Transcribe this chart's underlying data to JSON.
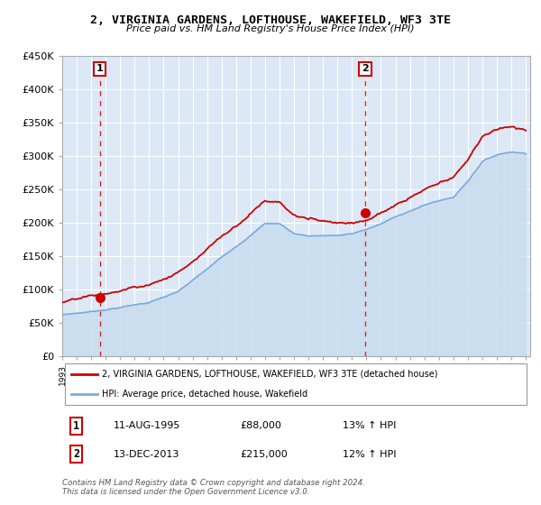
{
  "title": "2, VIRGINIA GARDENS, LOFTHOUSE, WAKEFIELD, WF3 3TE",
  "subtitle": "Price paid vs. HM Land Registry's House Price Index (HPI)",
  "ylim": [
    0,
    450000
  ],
  "yticks": [
    0,
    50000,
    100000,
    150000,
    200000,
    250000,
    300000,
    350000,
    400000,
    450000
  ],
  "ytick_labels": [
    "£0",
    "£50K",
    "£100K",
    "£150K",
    "£200K",
    "£250K",
    "£300K",
    "£350K",
    "£400K",
    "£450K"
  ],
  "x_start_year": 1993,
  "x_end_year": 2025,
  "sale1_price": 88000,
  "sale1_label": "1",
  "sale2_price": 215000,
  "sale2_label": "2",
  "red_color": "#cc0000",
  "blue_color": "#7aaadd",
  "blue_fill_color": "#c8ddf0",
  "bg_color": "#dce8f5",
  "grid_color": "#ffffff",
  "dashed_red": "#dd0000",
  "legend_line1": "2, VIRGINIA GARDENS, LOFTHOUSE, WAKEFIELD, WF3 3TE (detached house)",
  "legend_line2": "HPI: Average price, detached house, Wakefield",
  "footnote": "Contains HM Land Registry data © Crown copyright and database right 2024.\nThis data is licensed under the Open Government Licence v3.0.",
  "table_row1": [
    "1",
    "11-AUG-1995",
    "£88,000",
    "13% ↑ HPI"
  ],
  "table_row2": [
    "2",
    "13-DEC-2013",
    "£215,000",
    "12% ↑ HPI"
  ]
}
